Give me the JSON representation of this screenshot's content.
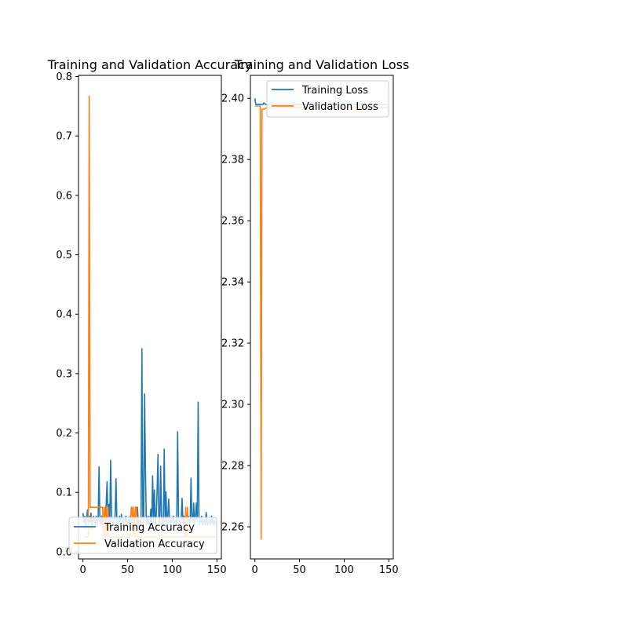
{
  "chart_data": [
    {
      "type": "line",
      "title": "Training and Validation Accuracy",
      "xlabel": "",
      "ylabel": "",
      "xlim": [
        -5,
        155
      ],
      "ylim": [
        -0.012,
        0.802
      ],
      "xticks": [
        0,
        50,
        100,
        150
      ],
      "yticks": [
        0.0,
        0.1,
        0.2,
        0.3,
        0.4,
        0.5,
        0.6,
        0.7,
        0.8
      ],
      "grid": false,
      "legend": "lower-left",
      "series": [
        {
          "name": "Training Accuracy",
          "color": "#1f77b4",
          "x": [
            0,
            1,
            2,
            3,
            4,
            5,
            6,
            7,
            8,
            9,
            10,
            11,
            12,
            13,
            14,
            15,
            16,
            17,
            18,
            19,
            20,
            21,
            22,
            23,
            24,
            25,
            26,
            27,
            28,
            29,
            30,
            31,
            32,
            33,
            34,
            35,
            36,
            37,
            38,
            39,
            40,
            41,
            42,
            43,
            44,
            45,
            46,
            47,
            48,
            49,
            50,
            51,
            52,
            53,
            54,
            55,
            56,
            57,
            58,
            59,
            60,
            61,
            62,
            63,
            64,
            65,
            66,
            67,
            68,
            69,
            70,
            71,
            72,
            73,
            74,
            75,
            76,
            77,
            78,
            79,
            80,
            81,
            82,
            83,
            84,
            85,
            86,
            87,
            88,
            89,
            90,
            91,
            92,
            93,
            94,
            95,
            96,
            97,
            98,
            99,
            100,
            101,
            102,
            103,
            104,
            105,
            106,
            107,
            108,
            109,
            110,
            111,
            112,
            113,
            114,
            115,
            116,
            117,
            118,
            119,
            120,
            121,
            122,
            123,
            124,
            125,
            126,
            127,
            128,
            129,
            130,
            131,
            132,
            133,
            134,
            135,
            136,
            137,
            138,
            139,
            140,
            141,
            142,
            143,
            144,
            145,
            146,
            147,
            148,
            149
          ],
          "y": [
            0.065,
            0.05,
            0.06,
            0.04,
            0.055,
            0.07,
            0.045,
            0.06,
            0.05,
            0.065,
            0.04,
            0.055,
            0.06,
            0.045,
            0.05,
            0.06,
            0.045,
            0.055,
            0.143,
            0.05,
            0.045,
            0.06,
            0.04,
            0.055,
            0.05,
            0.06,
            0.08,
            0.118,
            0.055,
            0.08,
            0.045,
            0.154,
            0.06,
            0.05,
            0.045,
            0.055,
            0.06,
            0.123,
            0.05,
            0.045,
            0.05,
            0.06,
            0.045,
            0.063,
            0.05,
            0.045,
            0.055,
            0.05,
            0.06,
            0.045,
            0.05,
            0.055,
            0.045,
            0.06,
            0.05,
            0.055,
            0.045,
            0.05,
            0.06,
            0.045,
            0.05,
            0.075,
            0.045,
            0.055,
            0.05,
            0.045,
            0.342,
            0.06,
            0.05,
            0.266,
            0.136,
            0.045,
            0.05,
            0.06,
            0.045,
            0.05,
            0.072,
            0.045,
            0.128,
            0.05,
            0.104,
            0.045,
            0.06,
            0.1,
            0.164,
            0.05,
            0.045,
            0.144,
            0.06,
            0.05,
            0.045,
            0.173,
            0.05,
            0.101,
            0.045,
            0.06,
            0.089,
            0.05,
            0.045,
            0.055,
            0.05,
            0.06,
            0.045,
            0.05,
            0.055,
            0.045,
            0.202,
            0.06,
            0.05,
            0.045,
            0.055,
            0.09,
            0.05,
            0.06,
            0.045,
            0.05,
            0.055,
            0.045,
            0.06,
            0.05,
            0.045,
            0.124,
            0.055,
            0.05,
            0.082,
            0.045,
            0.06,
            0.082,
            0.05,
            0.252,
            0.045,
            0.055,
            0.05,
            0.06,
            0.045,
            0.05,
            0.055,
            0.045,
            0.066,
            0.05,
            0.045,
            0.055,
            0.05,
            0.045,
            0.06,
            0.05,
            0.045,
            0.055,
            0.05,
            0.045
          ]
        },
        {
          "name": "Validation Accuracy",
          "color": "#ff7f0e",
          "x": [
            0,
            1,
            2,
            3,
            4,
            5,
            6,
            7,
            8,
            9,
            10,
            11,
            12,
            13,
            14,
            15,
            16,
            17,
            18,
            19,
            20,
            21,
            22,
            23,
            24,
            25,
            26,
            27,
            28,
            29,
            30,
            31,
            32,
            33,
            34,
            35,
            36,
            37,
            38,
            39,
            40,
            41,
            42,
            43,
            44,
            45,
            46,
            47,
            48,
            49,
            50,
            51,
            52,
            53,
            54,
            55,
            56,
            57,
            58,
            59,
            60,
            61,
            62,
            63,
            64,
            65,
            66,
            67,
            68,
            69,
            70,
            71,
            72,
            73,
            74,
            75,
            76,
            77,
            78,
            79,
            80,
            81,
            82,
            83,
            84,
            85,
            86,
            87,
            88,
            89,
            90,
            91,
            92,
            93,
            94,
            95,
            96,
            97,
            98,
            99,
            100,
            101,
            102,
            103,
            104,
            105,
            106,
            107,
            108,
            109,
            110,
            111,
            112,
            113,
            114,
            115,
            116,
            117,
            118,
            119,
            120,
            121,
            122,
            123,
            124,
            125,
            126,
            127,
            128,
            129,
            130,
            131,
            132,
            133,
            134,
            135,
            136,
            137,
            138,
            139,
            140,
            141,
            142,
            143,
            144,
            145,
            146,
            147,
            148,
            149
          ],
          "y": [
            0.025,
            0.025,
            0.025,
            0.025,
            0.025,
            0.025,
            0.025,
            0.767,
            0.075,
            0.075,
            0.075,
            0.075,
            0.075,
            0.075,
            0.075,
            0.075,
            0.075,
            0.075,
            0.075,
            0.075,
            0.075,
            0.075,
            0.075,
            0.025,
            0.075,
            0.025,
            0.075,
            0.025,
            0.075,
            0.025,
            0.025,
            0.025,
            0.025,
            0.025,
            0.025,
            0.025,
            0.025,
            0.025,
            0.025,
            0.025,
            0.025,
            0.025,
            0.025,
            0.025,
            0.025,
            0.025,
            0.025,
            0.025,
            0.025,
            0.025,
            0.025,
            0.025,
            0.025,
            0.025,
            0.075,
            0.075,
            0.025,
            0.075,
            0.025,
            0.075,
            0.075,
            0.025,
            0.025,
            0.025,
            0.025,
            0.025,
            0.025,
            0.025,
            0.025,
            0.025,
            0.025,
            0.025,
            0.025,
            0.025,
            0.025,
            0.025,
            0.025,
            0.025,
            0.025,
            0.025,
            0.025,
            0.025,
            0.025,
            0.025,
            0.025,
            0.025,
            0.025,
            0.025,
            0.025,
            0.025,
            0.025,
            0.025,
            0.025,
            0.025,
            0.025,
            0.025,
            0.025,
            0.025,
            0.025,
            0.025,
            0.025,
            0.025,
            0.025,
            0.025,
            0.025,
            0.025,
            0.025,
            0.025,
            0.025,
            0.025,
            0.025,
            0.025,
            0.025,
            0.025,
            0.025,
            0.075,
            0.025,
            0.075,
            0.025,
            0.025,
            0.025,
            0.025,
            0.025,
            0.025,
            0.025,
            0.025,
            0.025,
            0.025,
            0.025,
            0.025,
            0.025,
            0.025,
            0.025,
            0.025,
            0.025,
            0.025,
            0.025,
            0.025,
            0.025,
            0.025,
            0.025,
            0.025,
            0.025,
            0.025,
            0.025,
            0.025,
            0.025,
            0.025,
            0.025,
            0.025
          ]
        }
      ]
    },
    {
      "type": "line",
      "title": "Training and Validation Loss",
      "xlabel": "",
      "ylabel": "",
      "xlim": [
        -5,
        155
      ],
      "ylim": [
        2.2495,
        2.4075
      ],
      "xticks": [
        0,
        50,
        100,
        150
      ],
      "yticks": [
        2.26,
        2.28,
        2.3,
        2.32,
        2.34,
        2.36,
        2.38,
        2.4
      ],
      "grid": false,
      "legend": "upper-right",
      "series": [
        {
          "name": "Training Loss",
          "color": "#1f77b4",
          "x": [
            0,
            1,
            2,
            3,
            4,
            5,
            6,
            7,
            8,
            9,
            10,
            12,
            15,
            20,
            30,
            40,
            50,
            60,
            70,
            80,
            90,
            100,
            110,
            120,
            130,
            140,
            149
          ],
          "y": [
            2.4,
            2.398,
            2.398,
            2.398,
            2.398,
            2.398,
            2.398,
            2.398,
            2.398,
            2.398,
            2.3985,
            2.398,
            2.398,
            2.398,
            2.398,
            2.398,
            2.398,
            2.398,
            2.398,
            2.398,
            2.398,
            2.398,
            2.398,
            2.398,
            2.398,
            2.398,
            2.398
          ]
        },
        {
          "name": "Validation Loss",
          "color": "#ff7f0e",
          "x": [
            0,
            1,
            2,
            3,
            4,
            5,
            6,
            7,
            8,
            9,
            10,
            11,
            12,
            15,
            20,
            30,
            40,
            50,
            60,
            70,
            80,
            90,
            100,
            110,
            120,
            130,
            140,
            149
          ],
          "y": [
            2.3975,
            2.3975,
            2.3975,
            2.3975,
            2.3975,
            2.3975,
            2.3975,
            2.256,
            2.3965,
            2.3965,
            2.3965,
            2.3965,
            2.3968,
            2.397,
            2.397,
            2.397,
            2.397,
            2.397,
            2.397,
            2.397,
            2.397,
            2.397,
            2.397,
            2.397,
            2.397,
            2.397,
            2.397,
            2.397
          ]
        }
      ]
    }
  ]
}
